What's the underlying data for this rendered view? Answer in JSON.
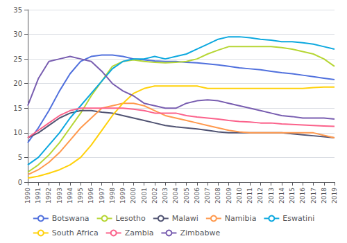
{
  "chart_data": {
    "type": "line",
    "x": [
      1990,
      1991,
      1992,
      1993,
      1994,
      1995,
      1996,
      1997,
      1998,
      1999,
      2000,
      2001,
      2002,
      2003,
      2004,
      2005,
      2006,
      2007,
      2008,
      2009,
      2010,
      2011,
      2012,
      2013,
      2014,
      2015,
      2016,
      2017,
      2018,
      2019
    ],
    "series": [
      {
        "name": "Botswana",
        "values": [
          8.0,
          11.0,
          14.5,
          18.5,
          22.0,
          24.5,
          25.5,
          25.8,
          25.8,
          25.5,
          25.0,
          24.8,
          24.6,
          24.5,
          24.5,
          24.3,
          24.2,
          24.0,
          23.8,
          23.5,
          23.2,
          23.0,
          22.8,
          22.5,
          22.2,
          22.0,
          21.7,
          21.4,
          21.1,
          20.8
        ]
      },
      {
        "name": "Lesotho",
        "values": [
          2.0,
          3.5,
          5.5,
          8.0,
          11.0,
          14.0,
          17.5,
          20.5,
          23.5,
          24.5,
          24.8,
          24.5,
          24.3,
          24.2,
          24.3,
          24.5,
          25.0,
          26.0,
          26.8,
          27.5,
          27.5,
          27.5,
          27.5,
          27.5,
          27.3,
          27.0,
          26.5,
          26.0,
          25.0,
          23.5
        ]
      },
      {
        "name": "Malawi",
        "values": [
          9.0,
          10.0,
          11.5,
          13.0,
          14.0,
          14.5,
          14.5,
          14.2,
          14.0,
          13.5,
          13.0,
          12.5,
          12.0,
          11.5,
          11.2,
          11.0,
          10.8,
          10.5,
          10.2,
          10.0,
          10.0,
          10.0,
          10.0,
          10.0,
          10.0,
          9.8,
          9.6,
          9.4,
          9.2,
          9.0
        ]
      },
      {
        "name": "Namibia",
        "values": [
          1.5,
          2.5,
          4.0,
          6.0,
          8.5,
          11.0,
          13.0,
          15.0,
          15.5,
          16.0,
          16.0,
          15.5,
          14.5,
          13.5,
          13.0,
          12.5,
          12.0,
          11.5,
          11.0,
          10.5,
          10.2,
          10.0,
          10.0,
          10.0,
          10.0,
          10.0,
          10.0,
          10.0,
          9.5,
          9.0
        ]
      },
      {
        "name": "Eswatini",
        "values": [
          3.5,
          5.0,
          7.5,
          10.0,
          13.0,
          15.5,
          18.0,
          20.5,
          23.0,
          24.5,
          25.0,
          25.0,
          25.5,
          25.0,
          25.5,
          26.0,
          27.0,
          28.0,
          29.0,
          29.5,
          29.5,
          29.3,
          29.0,
          28.8,
          28.5,
          28.5,
          28.3,
          28.0,
          27.5,
          27.0
        ]
      },
      {
        "name": "South Africa",
        "values": [
          0.8,
          1.2,
          1.8,
          2.5,
          3.5,
          5.0,
          7.5,
          10.5,
          13.5,
          16.0,
          18.0,
          19.0,
          19.5,
          19.5,
          19.5,
          19.5,
          19.5,
          19.0,
          19.0,
          19.0,
          19.0,
          19.0,
          19.0,
          19.0,
          19.0,
          19.0,
          19.0,
          19.2,
          19.3,
          19.3
        ]
      },
      {
        "name": "Zambia",
        "values": [
          9.0,
          10.5,
          12.0,
          13.5,
          14.5,
          15.0,
          15.0,
          15.0,
          15.0,
          15.0,
          14.8,
          14.5,
          14.0,
          14.0,
          14.0,
          13.5,
          13.2,
          13.0,
          12.8,
          12.5,
          12.3,
          12.2,
          12.0,
          12.0,
          11.8,
          11.7,
          11.6,
          11.5,
          11.4,
          11.3
        ]
      },
      {
        "name": "Zimbabwe",
        "values": [
          15.5,
          21.0,
          24.5,
          25.0,
          25.5,
          25.0,
          24.5,
          22.5,
          20.0,
          18.5,
          17.5,
          16.0,
          15.5,
          15.0,
          15.0,
          16.0,
          16.5,
          16.7,
          16.5,
          16.0,
          15.5,
          15.0,
          14.5,
          14.0,
          13.5,
          13.3,
          13.0,
          13.0,
          13.0,
          12.8
        ]
      }
    ],
    "xlim": [
      1990,
      2019
    ],
    "xticks": [
      1990,
      1991,
      1992,
      1993,
      1994,
      1995,
      1996,
      1997,
      1998,
      1999,
      2000,
      2001,
      2002,
      2003,
      2004,
      2005,
      2006,
      2007,
      2008,
      2009,
      2010,
      2011,
      2012,
      2013,
      2014,
      2015,
      2016,
      2017,
      2018,
      2019
    ],
    "ylim": [
      0,
      35
    ],
    "yticks": [
      0,
      5,
      10,
      15,
      20,
      25,
      30,
      35
    ],
    "grid": true,
    "legend": "bottom"
  }
}
